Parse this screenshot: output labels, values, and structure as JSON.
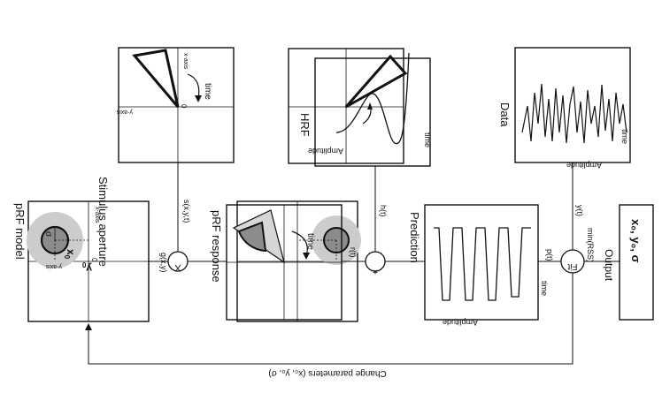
{
  "diagram": {
    "orientation_note_text": "",
    "stimulus_aperture": {
      "title": "Stimulus aperture",
      "x_axis": "x-axis",
      "y_axis": "y-axis",
      "origin": "0",
      "time": "time"
    },
    "hrf": {
      "title": "HRF",
      "amplitude": "Amplitude",
      "time": "time"
    },
    "data": {
      "title": "Data",
      "amplitude": "Amplitude",
      "time": "time"
    },
    "prf_model": {
      "title": "pRF model",
      "x_axis": "x-axis",
      "y_axis": "y-axis",
      "origin": "0",
      "sigma": "σ",
      "x0": "x",
      "x0_sub": "0",
      "y0": "y",
      "y0_sub": "0"
    },
    "prf_response": {
      "title": "pRF response",
      "time": "time"
    },
    "prediction": {
      "title": "Prediction",
      "amplitude": "Amplitude",
      "time": "time"
    },
    "operators": {
      "multiply": "X",
      "convolve": "*",
      "fit": "Fit"
    },
    "signals": {
      "gxy": "g(x,y)",
      "sxyt": "s(x,y,t)",
      "rt": "r(t)",
      "ht": "h(t)",
      "pt": "p(t)",
      "yt": "y(t)",
      "min_rss": "min(RSS)"
    },
    "output": {
      "label": "Output",
      "value": "x₀, y₀, σ"
    },
    "feedback": {
      "label": "Change parameters (x₀, y₀, σ)"
    }
  }
}
